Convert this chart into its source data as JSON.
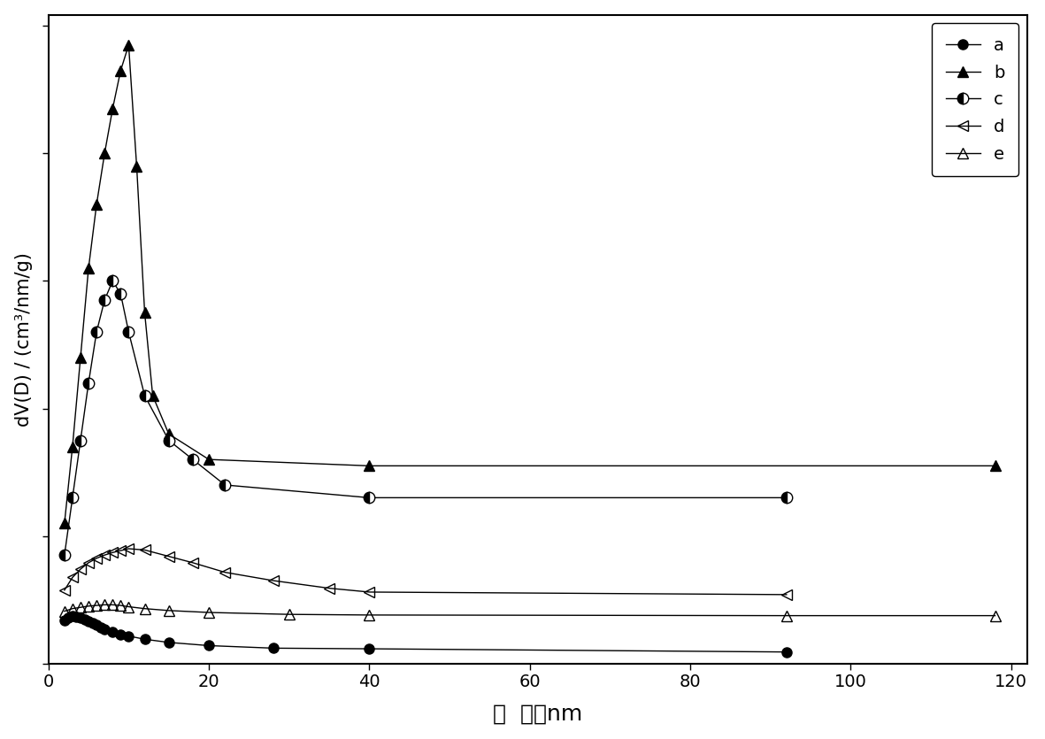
{
  "title": "",
  "xlabel": "孔  径／nm",
  "ylabel": "dV(D) / (cm³/nm/g)",
  "xlim": [
    0,
    122
  ],
  "background_color": "#ffffff",
  "xticks": [
    0,
    20,
    40,
    60,
    80,
    100,
    120
  ],
  "legend_loc": "upper right",
  "series_a": {
    "label": "a",
    "marker": "o",
    "fillstyle": "full",
    "ms": 8,
    "x": [
      2.0,
      2.5,
      3.0,
      3.5,
      4.0,
      4.5,
      5.0,
      5.5,
      6.0,
      6.5,
      7.0,
      8.0,
      9.0,
      10.0,
      12.0,
      15.0,
      20.0,
      28.0,
      40.0,
      92.0
    ],
    "y": [
      0.068,
      0.072,
      0.074,
      0.073,
      0.071,
      0.069,
      0.066,
      0.063,
      0.06,
      0.057,
      0.054,
      0.049,
      0.046,
      0.043,
      0.038,
      0.033,
      0.028,
      0.024,
      0.023,
      0.018
    ]
  },
  "series_b": {
    "label": "b",
    "marker": "^",
    "fillstyle": "full",
    "ms": 9,
    "x": [
      2.0,
      3.0,
      4.0,
      5.0,
      6.0,
      7.0,
      8.0,
      9.0,
      10.0,
      11.0,
      12.0,
      13.0,
      15.0,
      20.0,
      40.0,
      118.0
    ],
    "y": [
      0.22,
      0.34,
      0.48,
      0.62,
      0.72,
      0.8,
      0.87,
      0.93,
      0.97,
      0.78,
      0.55,
      0.42,
      0.36,
      0.32,
      0.31,
      0.31
    ]
  },
  "series_c": {
    "label": "c",
    "marker": "o",
    "fillstyle": "left",
    "ms": 9,
    "x": [
      2.0,
      3.0,
      4.0,
      5.0,
      6.0,
      7.0,
      8.0,
      9.0,
      10.0,
      12.0,
      15.0,
      18.0,
      22.0,
      40.0,
      92.0
    ],
    "y": [
      0.17,
      0.26,
      0.35,
      0.44,
      0.52,
      0.57,
      0.6,
      0.58,
      0.52,
      0.42,
      0.35,
      0.32,
      0.28,
      0.26,
      0.26
    ]
  },
  "series_d": {
    "label": "d",
    "marker": "<",
    "fillstyle": "none",
    "ms": 9,
    "x": [
      2.0,
      3.0,
      4.0,
      5.0,
      6.0,
      7.0,
      8.0,
      9.0,
      10.0,
      12.0,
      15.0,
      18.0,
      22.0,
      28.0,
      35.0,
      40.0,
      92.0
    ],
    "y": [
      0.115,
      0.135,
      0.148,
      0.158,
      0.165,
      0.17,
      0.174,
      0.177,
      0.18,
      0.178,
      0.168,
      0.158,
      0.143,
      0.13,
      0.118,
      0.112,
      0.108
    ]
  },
  "series_e": {
    "label": "e",
    "marker": "^",
    "fillstyle": "none",
    "ms": 9,
    "x": [
      2.0,
      3.0,
      4.0,
      5.0,
      6.0,
      7.0,
      8.0,
      9.0,
      10.0,
      12.0,
      15.0,
      20.0,
      30.0,
      40.0,
      92.0,
      118.0
    ],
    "y": [
      0.082,
      0.086,
      0.088,
      0.09,
      0.091,
      0.092,
      0.092,
      0.091,
      0.089,
      0.086,
      0.083,
      0.08,
      0.077,
      0.076,
      0.075,
      0.075
    ]
  }
}
